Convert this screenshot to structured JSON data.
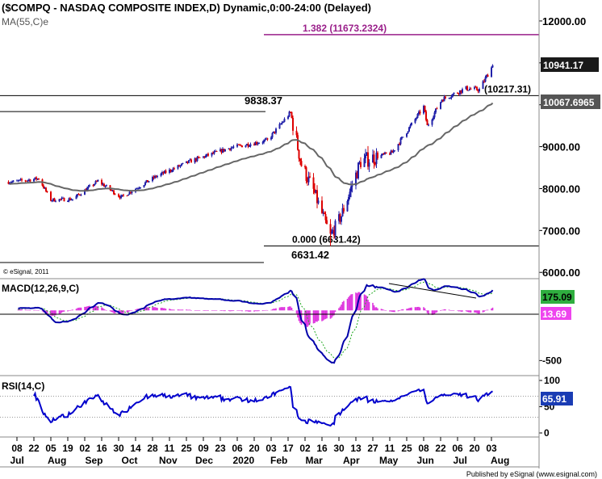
{
  "chart_data": {
    "type": "line",
    "title": "($COMPQ - NASDAQ COMPOSITE INDEX,D) Dynamic,0:00-24:00 (Delayed)",
    "subtitle": "MA(55,C)e",
    "copyright": "© eSignal, 2011",
    "footer": "Published by eSignal (www.esignal.com)",
    "x_ticks": {
      "days": [
        "08",
        "22",
        "05",
        "19",
        "02",
        "16",
        "30",
        "14",
        "28",
        "11",
        "25",
        "09",
        "23",
        "06",
        "20",
        "03",
        "17",
        "02",
        "16",
        "30",
        "13",
        "27",
        "11",
        "25",
        "08",
        "22",
        "06",
        "20",
        "03"
      ],
      "months": [
        "Jul",
        "Aug",
        "Sep",
        "Oct",
        "Nov",
        "Dec",
        "2020",
        "Feb",
        "Mar",
        "Apr",
        "May",
        "Jun",
        "Jul",
        "Aug"
      ]
    },
    "price_panel": {
      "ylim": [
        5850,
        12500
      ],
      "y_ticks": [
        "12000.00",
        "11000.00",
        "10000.00",
        "9000.00",
        "8000.00",
        "7000.00",
        "6000.00"
      ],
      "ma_name": "MA(55,C)e",
      "last_close": "10941.17",
      "last_ma": "10067.6965",
      "levels": [
        {
          "value": 11673.2324,
          "label": "1.382 (11673.2324)"
        },
        {
          "value": 10217.31,
          "label": "(10217.31)"
        },
        {
          "value": 9838.37,
          "label": "9838.37"
        },
        {
          "value": 6631.42,
          "label": "0.000 (6631.42)"
        }
      ],
      "annotations": [
        "9838.37",
        "6631.42"
      ],
      "key_points": [
        {
          "date": "2019-07-05",
          "close": 8160
        },
        {
          "date": "2019-07-26",
          "close": 8240
        },
        {
          "date": "2019-08-05",
          "close": 7730
        },
        {
          "date": "2019-08-23",
          "close": 7750
        },
        {
          "date": "2019-09-13",
          "close": 8180
        },
        {
          "date": "2019-10-02",
          "close": 7790
        },
        {
          "date": "2019-10-31",
          "close": 8290
        },
        {
          "date": "2019-11-29",
          "close": 8660
        },
        {
          "date": "2019-12-31",
          "close": 8970
        },
        {
          "date": "2020-01-31",
          "close": 9150
        },
        {
          "date": "2020-02-19",
          "close": 9817
        },
        {
          "date": "2020-02-28",
          "close": 8570
        },
        {
          "date": "2020-03-09",
          "close": 7950
        },
        {
          "date": "2020-03-23",
          "close": 6860
        },
        {
          "date": "2020-04-01",
          "close": 7360
        },
        {
          "date": "2020-04-17",
          "close": 8650
        },
        {
          "date": "2020-05-13",
          "close": 8860
        },
        {
          "date": "2020-06-08",
          "close": 9950
        },
        {
          "date": "2020-06-11",
          "close": 9490
        },
        {
          "date": "2020-06-23",
          "close": 10130
        },
        {
          "date": "2020-07-13",
          "close": 10390
        },
        {
          "date": "2020-07-24",
          "close": 10360
        },
        {
          "date": "2020-08-04",
          "close": 10941.17
        }
      ]
    },
    "macd_panel": {
      "name": "MACD(12,26,9,C)",
      "ylim": [
        -650,
        300
      ],
      "y_ticks": [
        "-500"
      ],
      "last_macd": "175.09",
      "last_hist": "13.69"
    },
    "rsi_panel": {
      "name": "RSI(14,C)",
      "ylim": [
        0,
        100
      ],
      "y_ticks": [
        "100",
        "50",
        "0"
      ],
      "last_rsi": "65.91"
    },
    "colors": {
      "up": "#2222aa",
      "down": "#dd0000",
      "ma": "#666666",
      "fib_line": "#9a1f8a",
      "macd": "#0000aa",
      "signal": "#22aa22",
      "histogram": "#dd33dd",
      "rsi": "#0000cc",
      "macd_badge": "#2fae3f",
      "hist_badge": "#ee44ee",
      "rsi_badge": "#1a3cb4"
    }
  }
}
